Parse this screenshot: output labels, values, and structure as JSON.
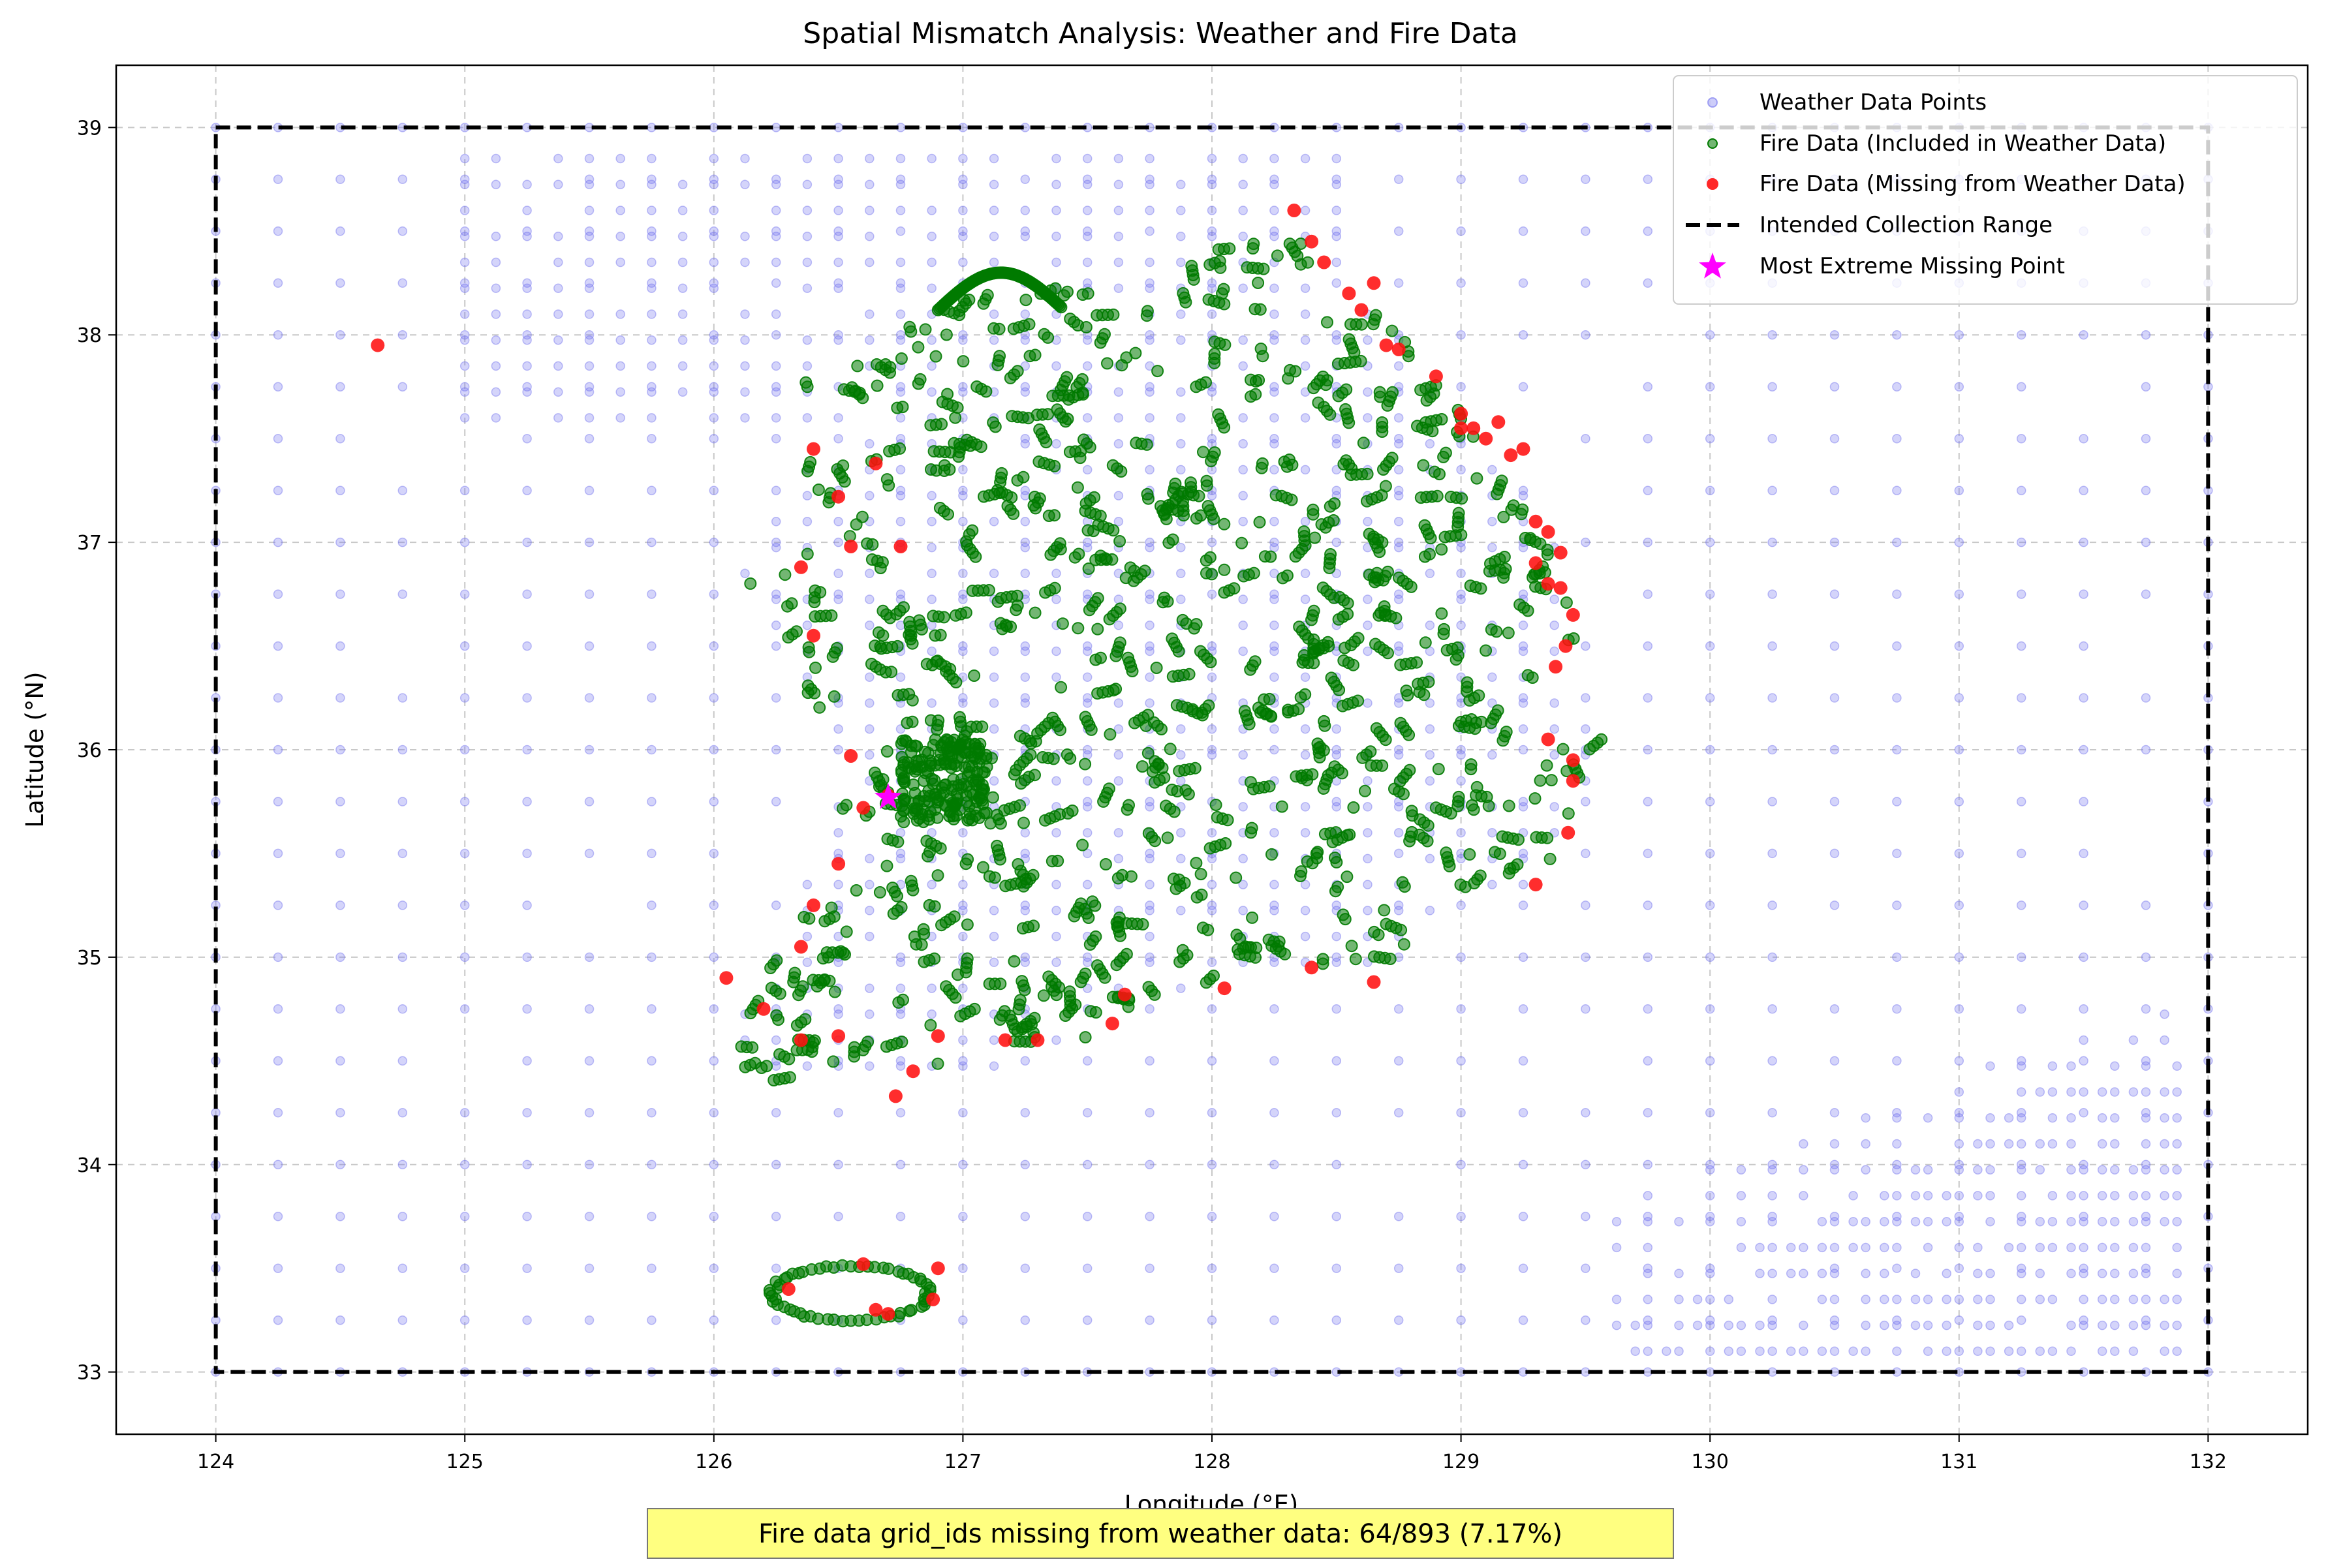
{
  "chart_data": {
    "type": "scatter",
    "title": "Spatial Mismatch Analysis: Weather and Fire Data",
    "xlabel": "Longitude (°E)",
    "ylabel": "Latitude (°N)",
    "xlim": [
      123.6,
      132.4
    ],
    "ylim": [
      32.7,
      39.3
    ],
    "xticks": [
      124,
      125,
      126,
      127,
      128,
      129,
      130,
      131,
      132
    ],
    "yticks": [
      33,
      34,
      35,
      36,
      37,
      38,
      39
    ],
    "grid": true,
    "legend_position": "top-right",
    "collection_range": {
      "lon": [
        124,
        132
      ],
      "lat": [
        33,
        39
      ]
    },
    "weather_grid": {
      "lon_step": 0.25,
      "lat_step": 0.25,
      "dense_lon_step": 0.125,
      "dense_lat_step": 0.125
    },
    "series": [
      {
        "name": "Weather Data Points",
        "color": "#7070ee",
        "marker": "circle"
      },
      {
        "name": "Fire Data (Included in Weather Data)",
        "color": "#007a00",
        "marker": "circle"
      },
      {
        "name": "Fire Data (Missing from Weather Data)",
        "color": "#ff1010",
        "marker": "circle",
        "points": [
          [
            124.65,
            37.95
          ],
          [
            128.33,
            38.6
          ],
          [
            128.4,
            38.45
          ],
          [
            128.45,
            38.35
          ],
          [
            128.55,
            38.2
          ],
          [
            128.6,
            38.12
          ],
          [
            128.75,
            37.93
          ],
          [
            128.9,
            37.8
          ],
          [
            129.0,
            37.62
          ],
          [
            129.05,
            37.55
          ],
          [
            129.1,
            37.5
          ],
          [
            129.2,
            37.42
          ],
          [
            129.3,
            37.1
          ],
          [
            129.35,
            37.05
          ],
          [
            129.4,
            36.95
          ],
          [
            129.4,
            36.78
          ],
          [
            129.42,
            36.5
          ],
          [
            129.38,
            36.4
          ],
          [
            129.35,
            36.05
          ],
          [
            129.45,
            35.85
          ],
          [
            129.43,
            35.6
          ],
          [
            129.3,
            35.35
          ],
          [
            128.65,
            34.88
          ],
          [
            128.4,
            34.95
          ],
          [
            128.05,
            34.85
          ],
          [
            127.65,
            34.82
          ],
          [
            127.6,
            34.68
          ],
          [
            127.3,
            34.6
          ],
          [
            127.17,
            34.6
          ],
          [
            126.9,
            34.62
          ],
          [
            126.8,
            34.45
          ],
          [
            126.73,
            34.33
          ],
          [
            126.5,
            34.62
          ],
          [
            126.35,
            34.6
          ],
          [
            126.2,
            34.75
          ],
          [
            126.05,
            34.9
          ],
          [
            126.35,
            35.05
          ],
          [
            126.4,
            35.25
          ],
          [
            126.5,
            35.45
          ],
          [
            126.6,
            35.72
          ],
          [
            126.7,
            35.78
          ],
          [
            126.55,
            35.97
          ],
          [
            126.4,
            36.55
          ],
          [
            126.35,
            36.88
          ],
          [
            126.55,
            36.98
          ],
          [
            126.75,
            36.98
          ],
          [
            126.65,
            37.38
          ],
          [
            126.5,
            37.22
          ],
          [
            126.4,
            37.45
          ],
          [
            126.3,
            33.4
          ],
          [
            126.6,
            33.52
          ],
          [
            126.65,
            33.3
          ],
          [
            126.7,
            33.28
          ],
          [
            126.9,
            33.5
          ],
          [
            126.88,
            33.35
          ],
          [
            129.15,
            37.58
          ],
          [
            129.25,
            37.45
          ],
          [
            129.45,
            36.65
          ],
          [
            129.0,
            37.55
          ],
          [
            129.3,
            36.9
          ],
          [
            129.35,
            36.8
          ],
          [
            128.7,
            37.95
          ],
          [
            128.65,
            38.25
          ],
          [
            129.45,
            35.95
          ]
        ]
      }
    ],
    "extreme_point": {
      "name": "Most Extreme Missing Point",
      "lon": 126.7,
      "lat": 35.77,
      "color": "#ff00ff"
    },
    "annotation": "Fire data grid_ids missing from weather data: 64/893 (7.17%)",
    "legend_line_label": "Intended Collection Range"
  },
  "colors": {
    "weather": "#7070ee",
    "fire_in": "#007a00",
    "fire_missing": "#ff1010",
    "extreme": "#ff00ff",
    "annotation_bg": "#ffff80"
  }
}
